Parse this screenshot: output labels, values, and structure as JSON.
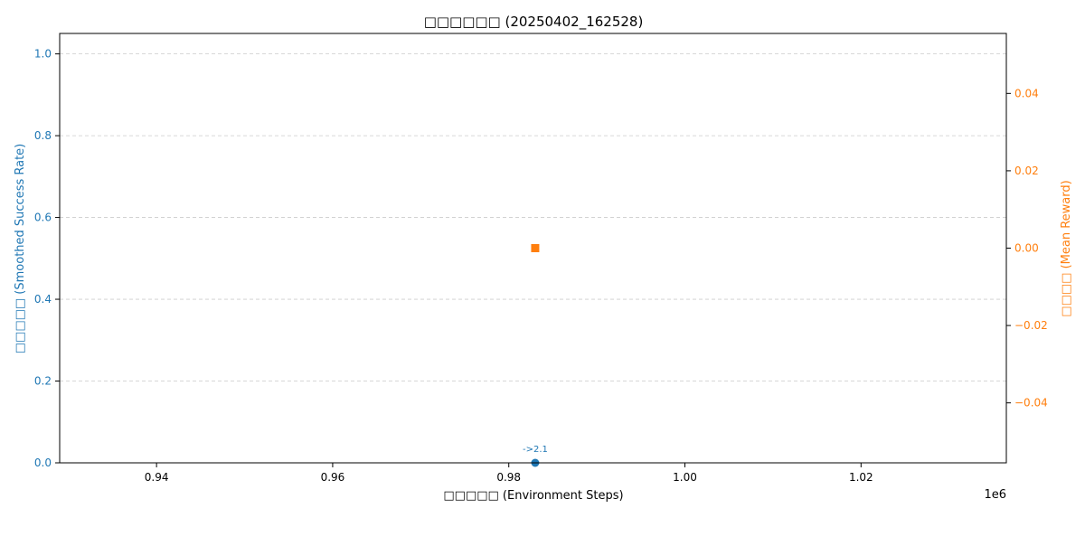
{
  "chart_data": {
    "type": "scatter",
    "title": "□□□□□□ (20250402_162528)",
    "xlabel": "□□□□□ (Environment Steps)",
    "x_offset_label": "1e6",
    "x_axis": {
      "min": 0.929,
      "max": 1.0365,
      "ticks": [
        0.94,
        0.96,
        0.98,
        1.0,
        1.02
      ],
      "tick_labels": [
        "0.94",
        "0.96",
        "0.98",
        "1.00",
        "1.02"
      ]
    },
    "y_left": {
      "label": "□□□□□ (Smoothed Success Rate)",
      "color": "#1f77b4",
      "min": 0.0,
      "max": 1.05,
      "ticks": [
        0.0,
        0.2,
        0.4,
        0.6,
        0.8,
        1.0
      ],
      "tick_labels": [
        "0.0",
        "0.2",
        "0.4",
        "0.6",
        "0.8",
        "1.0"
      ]
    },
    "y_right": {
      "label": "□□□□ (Mean Reward)",
      "color": "#ff7f0e",
      "min": -0.0555,
      "max": 0.0555,
      "ticks": [
        -0.04,
        -0.02,
        0.0,
        0.02,
        0.04
      ],
      "tick_labels": [
        "−0.04",
        "−0.02",
        "0.00",
        "0.02",
        "0.04"
      ]
    },
    "grid": true,
    "series": [
      {
        "axis": "left",
        "marker": "circle",
        "color": "#1f77b4",
        "points": [
          {
            "x": 0.983,
            "y": 0.0
          }
        ],
        "annotations": [
          {
            "x": 0.983,
            "y": 0.0,
            "text": "->2.1"
          }
        ]
      },
      {
        "axis": "right",
        "marker": "square",
        "color": "#ff7f0e",
        "points": [
          {
            "x": 0.983,
            "y": 0.0
          }
        ]
      }
    ]
  }
}
